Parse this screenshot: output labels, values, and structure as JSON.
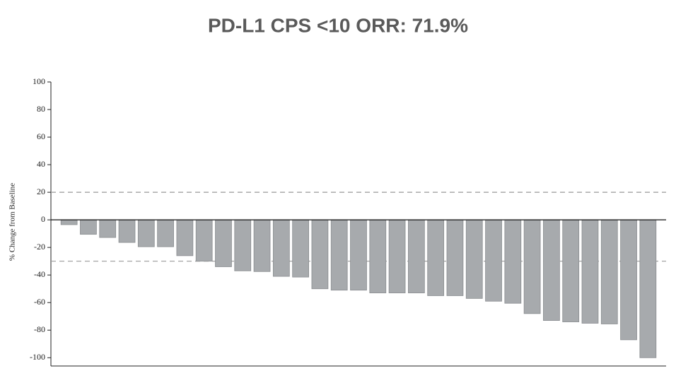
{
  "chart_data": {
    "type": "bar",
    "title": "PD-L1 CPS <10 ORR: 71.9%",
    "y_label": "% Change from Baseline",
    "categories": [
      null,
      null,
      null,
      null,
      null,
      null,
      null,
      null,
      null,
      null,
      null,
      null,
      null,
      null,
      null,
      null,
      null,
      null,
      null,
      null,
      null,
      null,
      null,
      null,
      null,
      null,
      null,
      null,
      null,
      null,
      null
    ],
    "values": [
      -3.5,
      -10.5,
      -12.8,
      -16.4,
      -19.5,
      -19.5,
      -26,
      -30,
      -34,
      -37,
      -37.5,
      -41,
      -41.5,
      -50,
      -51,
      -51,
      -53,
      -53,
      -53,
      -55,
      -55,
      -57,
      -59,
      -60.5,
      -68,
      -73,
      -74,
      -75,
      -75.5,
      -87,
      -100
    ],
    "color": "#a7aaad",
    "ylim": [
      -106,
      100
    ],
    "yticks": [
      -100,
      -80,
      -60,
      -40,
      -20,
      0,
      20,
      40,
      60,
      80,
      100
    ],
    "reference_lines": [
      20,
      -30
    ],
    "grid": false
  }
}
